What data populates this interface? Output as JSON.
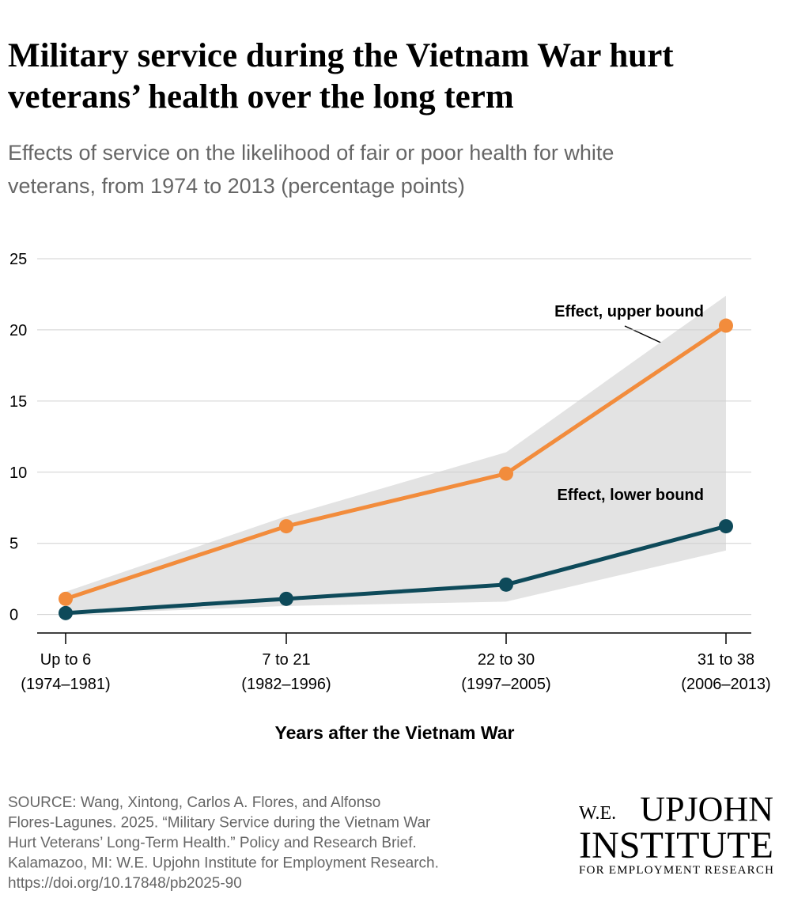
{
  "chart_data": {
    "type": "line",
    "title": [
      "Military service during the Vietnam War hurt",
      "veterans’ health over the long term"
    ],
    "subtitle": [
      "Effects of service on the likelihood of fair or poor health for white",
      "veterans, from 1974 to 2013 (percentage points)"
    ],
    "categories": [
      "Up to 6",
      "7 to 21",
      "22 to 30",
      "31 to 38"
    ],
    "category_years": [
      "(1974–1981)",
      "(1982–1996)",
      "(1997–2005)",
      "(2006–2013)"
    ],
    "x_label": "Years after the Vietnam War",
    "series": [
      {
        "name": "Effect, upper bound",
        "color": "#f28c3c",
        "values": [
          1.1,
          6.2,
          9.9,
          20.3
        ]
      },
      {
        "name": "Effect, lower bound",
        "color": "#0e4a5a",
        "values": [
          0.1,
          1.1,
          2.1,
          6.2
        ]
      }
    ],
    "band": {
      "color": "#e3e3e3",
      "upper": [
        1.6,
        6.9,
        11.4,
        22.4
      ],
      "lower": [
        0,
        0.6,
        0.9,
        4.5
      ]
    },
    "ylim": [
      -1.3,
      25
    ],
    "yticks": [
      0,
      5,
      10,
      15,
      20,
      25
    ],
    "grid": true,
    "source": [
      "SOURCE: Wang, Xintong, Carlos A. Flores, and Alfonso",
      "Flores-Lagunes. 2025. “Military Service during the Vietnam War",
      "Hurt Veterans’ Long-Term Health.” Policy and Research Brief.",
      "Kalamazoo, MI: W.E. Upjohn Institute for Employment Research.",
      "https://doi.org/10.17848/pb2025-90"
    ],
    "logo": [
      "W.E.",
      "UPJOHN",
      "INSTITUTE",
      "FOR EMPLOYMENT RESEARCH"
    ]
  }
}
